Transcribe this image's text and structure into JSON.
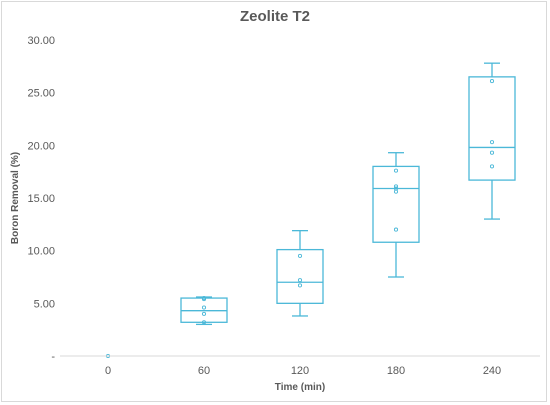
{
  "chart_data": {
    "type": "box",
    "title": "Zeolite T2",
    "xlabel": "Time (min)",
    "ylabel": "Boron Removal (%)",
    "categories": [
      "0",
      "60",
      "120",
      "180",
      "240"
    ],
    "ylim": [
      0,
      30
    ],
    "yticks": [
      0,
      5,
      10,
      15,
      20,
      25,
      30
    ],
    "ytick_labels": [
      "-",
      "5.00",
      "10.00",
      "15.00",
      "20.00",
      "25.00",
      "30.00"
    ],
    "grid": false,
    "color": "#4bb8d8",
    "boxes": [
      {
        "category": "0",
        "min": 0,
        "q1": 0,
        "median": 0,
        "q3": 0,
        "max": 0,
        "points": [
          0
        ]
      },
      {
        "category": "60",
        "min": 3.0,
        "q1": 3.2,
        "median": 4.3,
        "q3": 5.5,
        "max": 5.6,
        "points": [
          3.2,
          4.0,
          4.6,
          5.4,
          5.5
        ]
      },
      {
        "category": "120",
        "min": 3.8,
        "q1": 5.0,
        "median": 7.0,
        "q3": 10.1,
        "max": 11.9,
        "points": [
          6.7,
          7.2,
          9.5
        ]
      },
      {
        "category": "180",
        "min": 7.5,
        "q1": 10.8,
        "median": 15.9,
        "q3": 18.0,
        "max": 19.3,
        "points": [
          12.0,
          15.6,
          15.9,
          16.1,
          17.6
        ]
      },
      {
        "category": "240",
        "min": 13.0,
        "q1": 16.7,
        "median": 19.8,
        "q3": 26.5,
        "max": 27.8,
        "points": [
          18.0,
          19.3,
          20.3,
          26.1
        ]
      }
    ]
  }
}
